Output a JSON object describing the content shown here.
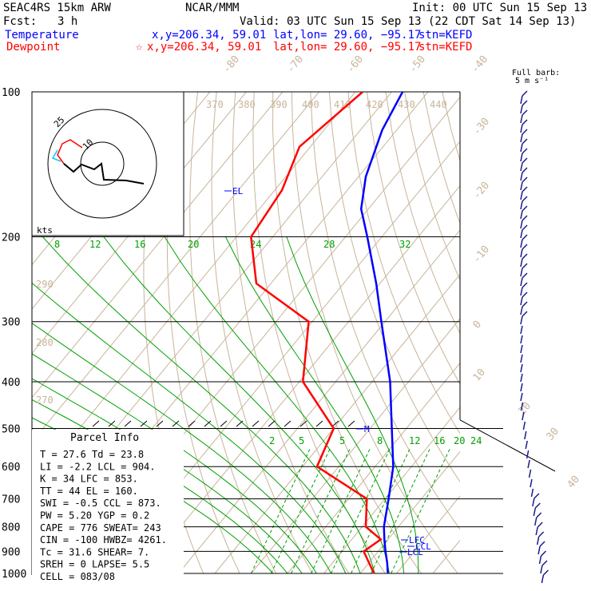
{
  "header": {
    "model": "SEAC4RS 15km ARW",
    "org": "NCAR/MMM",
    "init": "Init: 00 UTC Sun 15 Sep 13",
    "fcst_label": "Fcst:",
    "fcst_value": "3 h",
    "valid": "Valid: 03 UTC Sun 15 Sep 13 (22 CDT Sat 14 Sep 13)",
    "temp_label": "Temperature",
    "temp_xy": "x,y=206.34, 59.01",
    "temp_latlon": "lat,lon= 29.60, −95.17",
    "temp_stn": "stn=KEFD",
    "dew_label": "Dewpoint",
    "dew_xy": "x,y=206.34, 59.01",
    "dew_latlon": "lat,lon= 29.60, −95.17",
    "dew_stn": "stn=KEFD",
    "barb_note_1": "Full barb:",
    "barb_note_2": "5 m s⁻¹"
  },
  "hodograph": {
    "ring_label": "25",
    "inner_label": "10",
    "units": "kts"
  },
  "parcel": {
    "title": "Parcel Info",
    "lines": [
      "T  =   27.6 Td =  23.8",
      "LI =   -2.2 LCL =  904.",
      "K  =     34 LFC =  853.",
      "TT =     44 EL  =  160.",
      "SWI =  -0.5 CCL =  873.",
      "PW =   5.20 YGP =   0.2",
      "CAPE =  776 SWEAT=  243",
      "CIN = -100 HWBZ= 4261.",
      "Tc =   31.6 SHEAR=   7.",
      "SREH =    0 LAPSE=   5.5",
      "CELL = 083/08"
    ]
  },
  "colors": {
    "temperature": "#0000ff",
    "dewpoint": "#ff0000",
    "isotherm": "#c8b49a",
    "dry_adiabat": "#c8b49a",
    "moist_adiabat": "#00a000",
    "mixing_ratio": "#00a000",
    "isobar": "#000000",
    "barb": "#1a1a8c",
    "hodo_cyan": "#00ccff"
  },
  "chart_data": {
    "type": "skew-t",
    "pressure_ticks": [
      100,
      200,
      300,
      400,
      500,
      600,
      700,
      800,
      900,
      1000
    ],
    "isotherm_labels": [
      "-80",
      "-70",
      "-60",
      "-50",
      "-40",
      "-30",
      "-20",
      "-10",
      "0",
      "10",
      "20",
      "30",
      "40"
    ],
    "theta_labels": [
      "370",
      "380",
      "390",
      "400",
      "410",
      "420",
      "430",
      "440"
    ],
    "theta_left_labels": [
      "290",
      "280",
      "270"
    ],
    "moist_labels_upper": [
      "8",
      "12",
      "16",
      "20",
      "24",
      "28",
      "32"
    ],
    "mixing_labels": [
      "2",
      "5",
      "8",
      "12",
      "16",
      "20",
      "24"
    ],
    "mixing_extra_label": "5",
    "profile_markers": [
      "EL",
      "M",
      "LFC",
      "CCL",
      "LCL"
    ],
    "temperature_profile": [
      {
        "p": 100,
        "t": -77
      },
      {
        "p": 120,
        "t": -74
      },
      {
        "p": 150,
        "t": -68
      },
      {
        "p": 175,
        "t": -62
      },
      {
        "p": 200,
        "t": -54
      },
      {
        "p": 250,
        "t": -41
      },
      {
        "p": 300,
        "t": -31
      },
      {
        "p": 400,
        "t": -15
      },
      {
        "p": 500,
        "t": -4
      },
      {
        "p": 600,
        "t": 5
      },
      {
        "p": 700,
        "t": 11
      },
      {
        "p": 800,
        "t": 16
      },
      {
        "p": 850,
        "t": 19
      },
      {
        "p": 900,
        "t": 22
      },
      {
        "p": 950,
        "t": 25
      },
      {
        "p": 1000,
        "t": 27.6
      }
    ],
    "dewpoint_profile": [
      {
        "p": 100,
        "t": -88
      },
      {
        "p": 130,
        "t": -93
      },
      {
        "p": 160,
        "t": -88
      },
      {
        "p": 200,
        "t": -86
      },
      {
        "p": 250,
        "t": -74
      },
      {
        "p": 300,
        "t": -51
      },
      {
        "p": 400,
        "t": -39
      },
      {
        "p": 500,
        "t": -20
      },
      {
        "p": 600,
        "t": -16
      },
      {
        "p": 700,
        "t": 5
      },
      {
        "p": 800,
        "t": 11
      },
      {
        "p": 850,
        "t": 18
      },
      {
        "p": 900,
        "t": 16
      },
      {
        "p": 950,
        "t": 20
      },
      {
        "p": 1000,
        "t": 23.8
      }
    ]
  }
}
